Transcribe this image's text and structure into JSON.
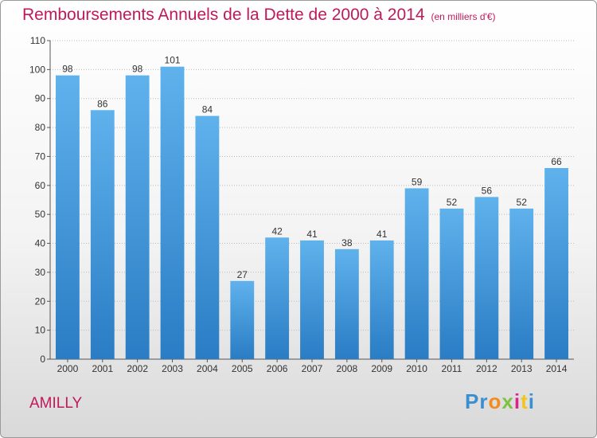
{
  "chart_data": {
    "type": "bar",
    "title": "Remboursements Annuels de la Dette de 2000 à 2014",
    "unit_label": "(en milliers d'€)",
    "categories": [
      "2000",
      "2001",
      "2002",
      "2003",
      "2004",
      "2005",
      "2006",
      "2007",
      "2008",
      "2009",
      "2010",
      "2011",
      "2012",
      "2013",
      "2014"
    ],
    "values": [
      98,
      86,
      98,
      101,
      84,
      27,
      42,
      41,
      38,
      41,
      59,
      52,
      56,
      52,
      66
    ],
    "ylim": [
      0,
      110
    ],
    "yticks": [
      0,
      10,
      20,
      30,
      40,
      50,
      60,
      70,
      80,
      90,
      100,
      110
    ],
    "grid": true,
    "bar_color": "#4a9ad8"
  },
  "place": "AMILLY",
  "logo": {
    "letters": [
      "P",
      "r",
      "o",
      "x",
      "i",
      "t",
      "i"
    ],
    "colors": [
      "#3a8fd0",
      "#3a8fd0",
      "#f28c1e",
      "#7fc241",
      "#e0218a",
      "#f2c41e",
      "#3a8fd0"
    ]
  }
}
